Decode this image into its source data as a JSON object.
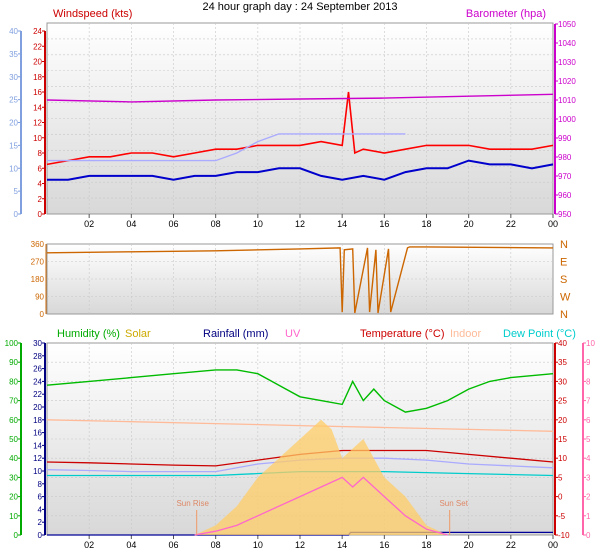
{
  "title": "24 hour graph day : 24 September 2013",
  "chart_data": [
    {
      "type": "line",
      "panel": "wind",
      "title": "24 hour graph day : 24 September 2013",
      "labels": {
        "windspeed": "Windspeed (kts)",
        "barometer": "Barometer (hpa)"
      },
      "x_ticks": [
        "02",
        "04",
        "06",
        "08",
        "10",
        "12",
        "14",
        "16",
        "18",
        "20",
        "22",
        "00"
      ],
      "x_range_hours": [
        0,
        24
      ],
      "axes": {
        "left_blue": {
          "ticks": [
            0,
            5,
            10,
            15,
            20,
            25,
            30,
            35,
            40
          ],
          "range": [
            0,
            40
          ]
        },
        "left_red": {
          "ticks": [
            0,
            2,
            4,
            6,
            8,
            10,
            12,
            14,
            16,
            18,
            20,
            22,
            24
          ],
          "range": [
            0,
            24
          ]
        },
        "right_purple": {
          "ticks": [
            950,
            960,
            970,
            980,
            990,
            1000,
            1010,
            1020,
            1030,
            1040,
            1050
          ],
          "range": [
            950,
            1050
          ]
        }
      },
      "series": [
        {
          "name": "Windspeed (kts)",
          "color": "#ff0000",
          "axis": "left_red",
          "x": [
            0,
            1,
            2,
            3,
            4,
            5,
            6,
            7,
            8,
            9,
            10,
            11,
            12,
            13,
            14,
            14.3,
            14.6,
            15,
            16,
            17,
            18,
            19,
            20,
            21,
            22,
            23,
            24
          ],
          "values": [
            6.5,
            7,
            7.5,
            7.5,
            8,
            8,
            7.5,
            8,
            8.5,
            8.5,
            9,
            9,
            9,
            9.5,
            9,
            16,
            8,
            8.5,
            8,
            8.5,
            9,
            9,
            9,
            8.5,
            8.5,
            8.5,
            9
          ]
        },
        {
          "name": "Barometer (hpa)",
          "color": "#cc00cc",
          "axis": "right_purple",
          "x": [
            0,
            4,
            8,
            12,
            16,
            20,
            24
          ],
          "values": [
            1010,
            1009,
            1010,
            1010.5,
            1011,
            1012,
            1013
          ]
        },
        {
          "color": "#0000cc",
          "axis": "left_red",
          "x": [
            0,
            1,
            2,
            3,
            4,
            5,
            6,
            7,
            8,
            9,
            10,
            11,
            12,
            13,
            14,
            15,
            16,
            17,
            18,
            19,
            20,
            21,
            22,
            23,
            24
          ],
          "values": [
            4.5,
            4.5,
            5,
            5,
            5,
            5,
            4.5,
            5,
            5,
            5.5,
            5.5,
            6,
            6,
            5,
            4.5,
            5,
            4.5,
            5.5,
            6,
            6,
            7,
            6.5,
            6.5,
            6,
            6.5
          ]
        },
        {
          "color": "#aaaaff",
          "axis": "left_red",
          "x": [
            0,
            2,
            4,
            6,
            8,
            9,
            10,
            11,
            12,
            13,
            14,
            15,
            16,
            17
          ],
          "values": [
            7,
            7,
            7,
            7,
            7,
            8,
            9.5,
            10.5,
            10.5,
            10.5,
            10.5,
            10.5,
            10.5,
            10.5
          ]
        }
      ]
    },
    {
      "type": "line",
      "panel": "direction",
      "x_ticks": [],
      "axes": {
        "left": {
          "ticks": [
            0,
            90,
            180,
            270,
            360
          ],
          "range": [
            0,
            360
          ]
        },
        "right": {
          "ticks": [
            "N",
            "W",
            "S",
            "E",
            "N"
          ]
        }
      },
      "series": [
        {
          "color": "#cc6600",
          "x": [
            0,
            4,
            8,
            12,
            13.9,
            14,
            14.1,
            14.5,
            14.6,
            15.2,
            15.3,
            15.6,
            15.7,
            16.2,
            16.3,
            17.1,
            17.2,
            18,
            24
          ],
          "values": [
            315,
            320,
            325,
            335,
            340,
            10,
            330,
            335,
            5,
            340,
            10,
            330,
            5,
            335,
            10,
            340,
            345,
            345,
            340
          ]
        }
      ]
    },
    {
      "type": "line",
      "panel": "multi",
      "labels": {
        "humidity": "Humidity (%)",
        "solar": "Solar",
        "rainfall": "Rainfall (mm)",
        "uv": "UV",
        "temperature": "Temperature (°C)",
        "indoor": "Indoor",
        "dewpoint": "Dew Point (°C)",
        "sunrise": "Sun Rise",
        "sunset": "Sun Set"
      },
      "x_ticks": [
        "02",
        "04",
        "06",
        "08",
        "10",
        "12",
        "14",
        "16",
        "18",
        "20",
        "22",
        "00"
      ],
      "axes": {
        "left_green": {
          "ticks": [
            0,
            10,
            20,
            30,
            40,
            50,
            60,
            70,
            80,
            90,
            100
          ],
          "range": [
            0,
            100
          ]
        },
        "left_navy": {
          "ticks": [
            0,
            2,
            4,
            6,
            8,
            10,
            12,
            14,
            16,
            18,
            20,
            22,
            24,
            26,
            28,
            30
          ],
          "range": [
            0,
            30
          ]
        },
        "right_red": {
          "ticks": [
            -10,
            -5,
            0,
            5,
            10,
            15,
            20,
            25,
            30,
            35,
            40
          ],
          "range": [
            -10,
            40
          ]
        },
        "right_pink": {
          "ticks": [
            0,
            1,
            2,
            3,
            4,
            5,
            6,
            7,
            8,
            9,
            10
          ],
          "range": [
            0,
            10
          ]
        }
      },
      "series": [
        {
          "name": "Humidity (%)",
          "color": "#00bb00",
          "axis": "left_green",
          "x": [
            0,
            2,
            4,
            6,
            8,
            9,
            10,
            11,
            12,
            13,
            14,
            14.5,
            15,
            15.5,
            16,
            17,
            18,
            19,
            20,
            21,
            22,
            24
          ],
          "values": [
            78,
            80,
            82,
            84,
            86,
            86,
            84,
            78,
            72,
            70,
            68,
            80,
            70,
            76,
            70,
            64,
            66,
            70,
            76,
            80,
            82,
            84
          ]
        },
        {
          "name": "Temperature (°C)",
          "color": "#cc0000",
          "axis": "right_red",
          "x": [
            0,
            2,
            4,
            6,
            8,
            10,
            12,
            14,
            16,
            18,
            20,
            22,
            24
          ],
          "values": [
            9,
            8.8,
            8.5,
            8.2,
            8,
            9.5,
            11,
            12,
            12,
            12,
            11,
            10,
            9
          ]
        },
        {
          "name": "Indoor",
          "color": "#ffbb99",
          "axis": "right_red",
          "x": [
            0,
            4,
            8,
            12,
            16,
            20,
            24
          ],
          "values": [
            20,
            19.5,
            19,
            18.5,
            18,
            17.5,
            17
          ]
        },
        {
          "name": "Dew Point (°C)",
          "color": "#00cccc",
          "axis": "right_red",
          "x": [
            0,
            4,
            8,
            12,
            16,
            20,
            24
          ],
          "values": [
            5.5,
            5.5,
            5.5,
            6.5,
            6.5,
            6,
            5.5
          ]
        },
        {
          "color": "#aaaaff",
          "axis": "right_red",
          "x": [
            0,
            2,
            4,
            6,
            8,
            10,
            12,
            14,
            16,
            18,
            20,
            22,
            24
          ],
          "values": [
            7,
            6.8,
            6.5,
            6.5,
            6.5,
            8.5,
            9.5,
            10,
            10,
            9.5,
            8.5,
            8,
            7.5
          ]
        },
        {
          "name": "Rainfall (mm)",
          "color": "#000099",
          "axis": "left_navy",
          "x": [
            0,
            14.3,
            14.4,
            24
          ],
          "values": [
            0,
            0,
            0.4,
            0.4
          ]
        },
        {
          "name": "Solar",
          "color": "#ffcc66",
          "axis": "right_pink",
          "type": "area",
          "x": [
            7,
            8,
            9,
            10,
            11,
            12,
            13,
            13.5,
            14,
            15,
            16,
            17,
            18,
            19
          ],
          "values": [
            0,
            0.5,
            1.5,
            3,
            4,
            5,
            6,
            5.5,
            4,
            5,
            3,
            2,
            0.5,
            0
          ]
        },
        {
          "name": "UV",
          "color": "#ff66cc",
          "axis": "right_pink",
          "x": [
            7,
            8,
            9,
            10,
            11,
            12,
            13,
            14,
            14.5,
            15,
            16,
            17,
            18,
            19
          ],
          "values": [
            0,
            0.2,
            0.5,
            1,
            1.5,
            2,
            2.5,
            3,
            2.5,
            3,
            2,
            1,
            0.3,
            0
          ]
        }
      ]
    }
  ]
}
